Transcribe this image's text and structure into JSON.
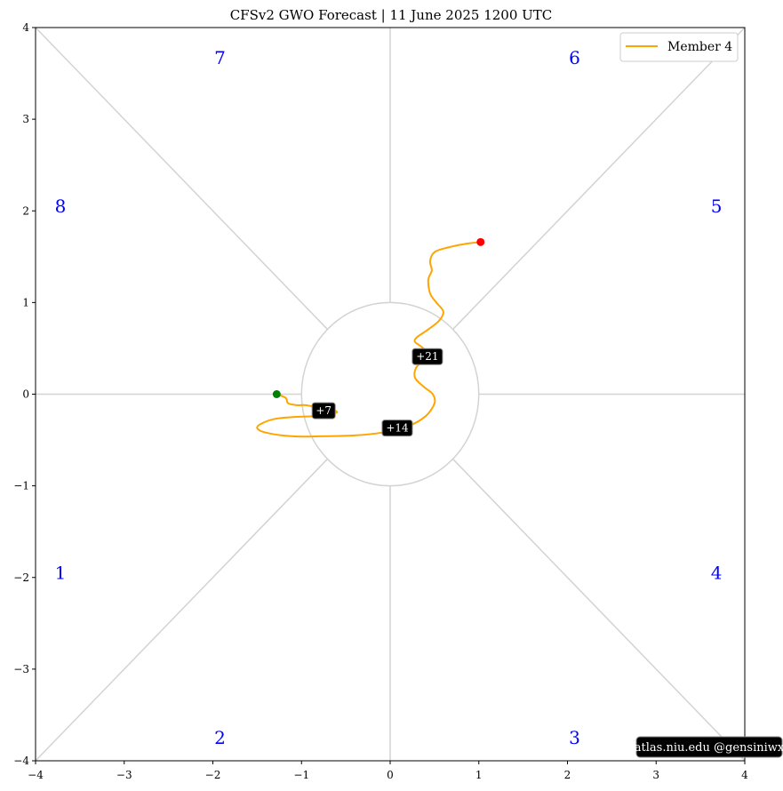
{
  "chart_data": {
    "type": "line",
    "title": "CFSv2 GWO Forecast   |   11  June  2025 1200 UTC",
    "xlim": [
      -4,
      4
    ],
    "ylim": [
      -4,
      4
    ],
    "xticks": [
      -4,
      -3,
      -2,
      -1,
      0,
      1,
      2,
      3,
      4
    ],
    "yticks": [
      -4,
      -3,
      -2,
      -1,
      0,
      1,
      2,
      3,
      4
    ],
    "xtick_labels": [
      "−4",
      "−3",
      "−2",
      "−1",
      "0",
      "1",
      "2",
      "3",
      "4"
    ],
    "ytick_labels": [
      "−4",
      "−3",
      "−2",
      "−1",
      "0",
      "1",
      "2",
      "3",
      "4"
    ],
    "grid": false,
    "legend_position": "top-right",
    "unit_circle_radius": 1,
    "phase_labels": [
      {
        "label": "1",
        "x": -3.72,
        "y": -1.95
      },
      {
        "label": "2",
        "x": -1.92,
        "y": -3.75
      },
      {
        "label": "3",
        "x": 2.08,
        "y": -3.75
      },
      {
        "label": "4",
        "x": 3.68,
        "y": -1.95
      },
      {
        "label": "5",
        "x": 3.68,
        "y": 2.05
      },
      {
        "label": "6",
        "x": 2.08,
        "y": 3.67
      },
      {
        "label": "7",
        "x": -1.92,
        "y": 3.67
      },
      {
        "label": "8",
        "x": -3.72,
        "y": 2.05
      }
    ],
    "series": [
      {
        "name": "Member 4",
        "color": "#ffa500",
        "x": [
          -1.28,
          -1.18,
          -1.15,
          -1.05,
          -0.95,
          -0.8,
          -0.65,
          -0.6,
          -0.7,
          -0.85,
          -1.1,
          -1.3,
          -1.45,
          -1.5,
          -1.4,
          -1.1,
          -0.8,
          -0.4,
          -0.1,
          0.2,
          0.4,
          0.5,
          0.48,
          0.38,
          0.28,
          0.3,
          0.42,
          0.45,
          0.35,
          0.28,
          0.3,
          0.42,
          0.55,
          0.6,
          0.52,
          0.45,
          0.43,
          0.47,
          0.45,
          0.5,
          0.65,
          0.85,
          1.02
        ],
        "y": [
          0.0,
          -0.04,
          -0.1,
          -0.12,
          -0.12,
          -0.15,
          -0.17,
          -0.2,
          -0.22,
          -0.24,
          -0.25,
          -0.27,
          -0.32,
          -0.37,
          -0.42,
          -0.46,
          -0.46,
          -0.45,
          -0.42,
          -0.35,
          -0.24,
          -0.1,
          0.0,
          0.08,
          0.18,
          0.3,
          0.38,
          0.43,
          0.52,
          0.57,
          0.62,
          0.7,
          0.8,
          0.9,
          1.0,
          1.1,
          1.25,
          1.35,
          1.45,
          1.55,
          1.6,
          1.64,
          1.66
        ]
      }
    ],
    "start_point": {
      "x": -1.28,
      "y": 0.0,
      "color": "#008000"
    },
    "end_point": {
      "x": 1.02,
      "y": 1.66,
      "color": "#ff0000"
    },
    "day_labels": [
      {
        "label": "+7",
        "x": -0.75,
        "y": -0.18
      },
      {
        "label": "+14",
        "x": 0.08,
        "y": -0.37
      },
      {
        "label": "+21",
        "x": 0.42,
        "y": 0.41
      }
    ],
    "credit": "atlas.niu.edu  @gensiniwx"
  }
}
